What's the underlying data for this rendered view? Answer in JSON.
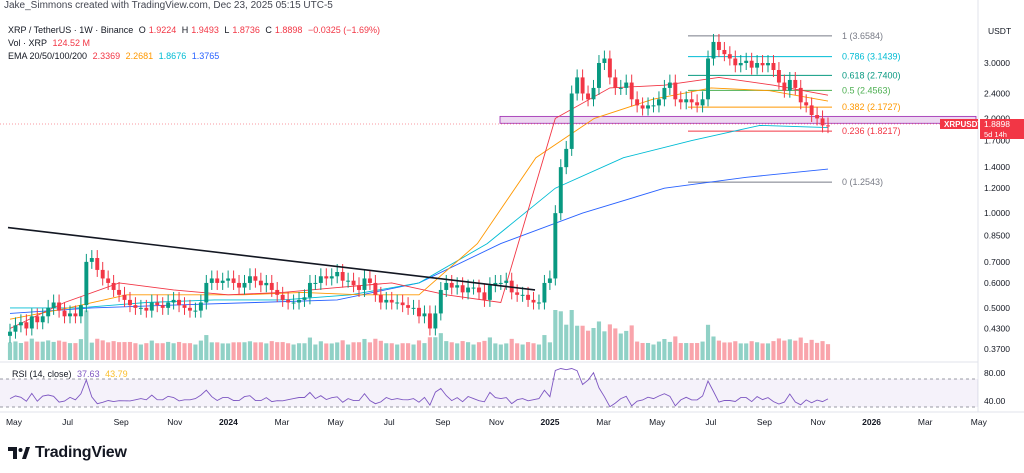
{
  "header": {
    "text": "Jake_Simmons created with TradingView.com, Dec 23, 2025 05:15 UTC-5"
  },
  "legend": {
    "symbol": "XRP / TetherUS · 1W · Binance",
    "ohlc": [
      {
        "k": "O",
        "v": "1.9224"
      },
      {
        "k": "H",
        "v": "1.9493"
      },
      {
        "k": "L",
        "v": "1.8736"
      },
      {
        "k": "C",
        "v": "1.8898"
      }
    ],
    "change": "−0.0325 (−1.69%)",
    "vol_label": "Vol · XRP",
    "vol_value": "124.52 M",
    "ema_label": "EMA 20/50/100/200",
    "ema_values": [
      "2.3369",
      "2.2681",
      "1.8676",
      "1.3765"
    ],
    "colors": {
      "down": "#f23645",
      "up": "#089981",
      "ema20": "#f23645",
      "ema50": "#ff9800",
      "ema100": "#00bcd4",
      "ema200": "#2962ff"
    }
  },
  "rsi": {
    "label": "RSI (14, close)",
    "value1": "37.63",
    "value2": "43.79",
    "levels": [
      "80.00",
      "40.00"
    ]
  },
  "price_tag": {
    "symbol": "XRPUSDT",
    "price": "1.8898",
    "countdown": "5d 14h"
  },
  "footer": {
    "brand": "TradingView"
  },
  "chart_data": {
    "type": "candlestick",
    "title": "XRP / TetherUS · 1W · Binance",
    "y_axis": {
      "label": "USDT",
      "scale": "log",
      "ticks": [
        "3.0000",
        "2.4000",
        "2.0000",
        "1.7000",
        "1.4000",
        "1.2000",
        "1.0000",
        "0.8500",
        "0.7000",
        "0.6000",
        "0.5000",
        "0.4300",
        "0.3700"
      ]
    },
    "x_axis": {
      "ticks": [
        "May",
        "Jul",
        "Sep",
        "Nov",
        "2024",
        "Mar",
        "May",
        "Jul",
        "Sep",
        "Nov",
        "2025",
        "Mar",
        "May",
        "Jul",
        "Sep",
        "Nov",
        "2026",
        "Mar",
        "May"
      ]
    },
    "fib_levels": [
      {
        "label": "1 (3.6584)",
        "ratio": 1,
        "price": 3.6584,
        "color": "#787b86"
      },
      {
        "label": "0.786 (3.1439)",
        "ratio": 0.786,
        "price": 3.1439,
        "color": "#00bcd4"
      },
      {
        "label": "0.618 (2.7400)",
        "ratio": 0.618,
        "price": 2.74,
        "color": "#089981"
      },
      {
        "label": "0.5 (2.4563)",
        "ratio": 0.5,
        "price": 2.4563,
        "color": "#4caf50"
      },
      {
        "label": "0.382 (2.1727)",
        "ratio": 0.382,
        "price": 2.1727,
        "color": "#ff9800"
      },
      {
        "label": "0.236 (1.8217)",
        "ratio": 0.236,
        "price": 1.8217,
        "color": "#f23645"
      },
      {
        "label": "0 (1.2543)",
        "ratio": 0,
        "price": 1.2543,
        "color": "#787b86"
      }
    ],
    "support_zone": [
      1.93,
      2.03
    ],
    "trendline": {
      "from": {
        "date": "2023-03",
        "price": 0.9
      },
      "to": {
        "date": "2024-12",
        "price": 0.57
      }
    },
    "series_close": [
      0.42,
      0.44,
      0.45,
      0.43,
      0.47,
      0.45,
      0.47,
      0.5,
      0.52,
      0.49,
      0.47,
      0.48,
      0.47,
      0.51,
      0.7,
      0.72,
      0.66,
      0.62,
      0.6,
      0.57,
      0.55,
      0.53,
      0.51,
      0.5,
      0.5,
      0.49,
      0.52,
      0.51,
      0.5,
      0.52,
      0.53,
      0.51,
      0.5,
      0.49,
      0.49,
      0.52,
      0.6,
      0.62,
      0.6,
      0.61,
      0.62,
      0.6,
      0.58,
      0.6,
      0.63,
      0.61,
      0.59,
      0.6,
      0.57,
      0.55,
      0.53,
      0.52,
      0.52,
      0.53,
      0.54,
      0.6,
      0.6,
      0.63,
      0.62,
      0.63,
      0.65,
      0.61,
      0.61,
      0.59,
      0.57,
      0.62,
      0.6,
      0.55,
      0.52,
      0.53,
      0.52,
      0.52,
      0.51,
      0.5,
      0.5,
      0.47,
      0.48,
      0.43,
      0.48,
      0.57,
      0.6,
      0.58,
      0.59,
      0.56,
      0.58,
      0.58,
      0.56,
      0.53,
      0.59,
      0.6,
      0.6,
      0.61,
      0.56,
      0.55,
      0.55,
      0.53,
      0.52,
      0.52,
      0.6,
      0.62,
      1.0,
      1.4,
      1.6,
      2.4,
      2.7,
      2.4,
      2.3,
      2.5,
      3.0,
      3.1,
      2.7,
      2.5,
      2.5,
      2.6,
      2.3,
      2.2,
      2.15,
      2.2,
      2.2,
      2.3,
      2.5,
      2.6,
      2.3,
      2.25,
      2.3,
      2.25,
      2.2,
      2.3,
      3.1,
      3.5,
      3.3,
      3.2,
      3.1,
      2.95,
      3.0,
      3.05,
      2.9,
      3.0,
      2.95,
      3.0,
      2.85,
      2.6,
      2.45,
      2.65,
      2.5,
      2.25,
      2.2,
      2.05,
      2.0,
      1.9,
      1.89
    ],
    "ema20": [
      0.43,
      0.52,
      0.6,
      0.57,
      0.55,
      0.56,
      0.58,
      0.6,
      0.55,
      0.52,
      2.0,
      2.5,
      2.55,
      2.7,
      2.55,
      2.37
    ],
    "ema50": [
      0.46,
      0.5,
      0.55,
      0.55,
      0.55,
      0.56,
      0.55,
      0.55,
      0.8,
      1.5,
      2.0,
      2.3,
      2.5,
      2.45,
      2.27
    ],
    "ema100": [
      0.5,
      0.5,
      0.52,
      0.53,
      0.53,
      0.55,
      0.6,
      0.8,
      1.2,
      1.5,
      1.7,
      1.9,
      1.87
    ],
    "ema200": [
      0.48,
      0.5,
      0.51,
      0.52,
      0.53,
      0.6,
      0.8,
      1.0,
      1.2,
      1.3,
      1.38
    ]
  }
}
